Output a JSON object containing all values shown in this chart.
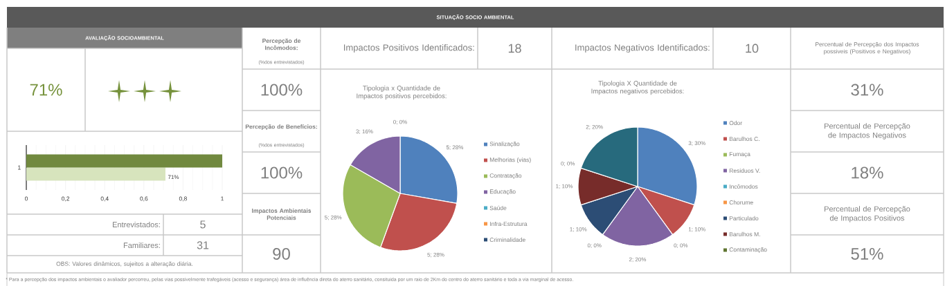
{
  "chart_data": [
    {
      "type": "other",
      "title": "SITUAÇÃO SOCIO AMBIENTAL",
      "annotations": [
        "* Para a percepção dos impactos ambientais o avaliador percorreu, pelas vias possivelmente trafegáveis (acesso e segurança) área de influência direta do aterro sanitário, consituida por um raio de 2Km do centro do aterro sanitário e toda a via marginal de acesso."
      ]
    },
    {
      "type": "other",
      "title": "AVALIAÇÃO SOCIOAMBIENTAL",
      "annotations": [
        "71%",
        "Entrevistados:",
        "5",
        "Familiares:",
        "31",
        "OBS: Valores dinâmicos, sujeitos a alteração diária."
      ]
    },
    {
      "type": "bar",
      "orientation": "horizontal",
      "categories": [
        "1"
      ],
      "series": [
        {
          "color": "#d7e4bd",
          "values": [
            0.71
          ],
          "value_labels": [
            "71%"
          ]
        },
        {
          "color": "#71893f",
          "values": [
            1
          ]
        }
      ],
      "xlim": [
        0,
        1
      ],
      "xticks": [
        0,
        {
          "value": 0.2,
          "label": "0,2"
        },
        {
          "value": 0.4,
          "label": "0,4"
        },
        {
          "value": 0.6,
          "label": "0,6"
        },
        {
          "value": 0.8,
          "label": "0,8"
        },
        1
      ],
      "grid": "x"
    },
    {
      "type": "other",
      "annotations": [
        "Percepção de Incômodos:",
        "(%dos entrevistados)",
        "100%",
        "Percepção de Benefícios:",
        "(%dos entrevistados)",
        "100%",
        "Impactos Ambientais Potenciais",
        "90"
      ]
    },
    {
      "type": "other",
      "annotations": [
        "Impactos Positivos Identificados:",
        "18"
      ]
    },
    {
      "type": "pie",
      "title": "Tipologia x Quantidade de Impactos positivos percebidos:",
      "categories": [
        "Sinalização",
        "Melhorias (vias)",
        "Contratação",
        "Educação",
        "Saúde",
        "Infra-Estrutura",
        "Criminalidade"
      ],
      "values": [
        5,
        5,
        5,
        3,
        0,
        0,
        0
      ],
      "value_labels": [
        "5; 28%",
        "5; 28%",
        "5; 28%",
        "3; 16%",
        "0; 0%",
        null,
        null
      ],
      "colors": [
        "#4f81bd",
        "#c0504d",
        "#9bbb59",
        "#8064a2",
        "#4bacc6",
        "#f79646",
        "#2c4d75"
      ],
      "legend": "right"
    },
    {
      "type": "other",
      "annotations": [
        "Impactos Negativos Identificados:",
        "10"
      ]
    },
    {
      "type": "pie",
      "title": "Tipologia X Quantidade de Impactos negativos percebidos:",
      "categories": [
        "Odor",
        "Barulhos C.",
        "Fumaça",
        "Residuos V.",
        "Incômodos",
        "Chorume",
        "Particulado",
        "Barulhos M.",
        "Contaminação",
        null
      ],
      "values": [
        3,
        1,
        0,
        2,
        0,
        0,
        1,
        1,
        0,
        2
      ],
      "value_labels": [
        "3; 30%",
        "1; 10%",
        "0; 0%",
        "2; 20%",
        "0; 0%",
        null,
        "1; 10%",
        "1; 10%",
        "0; 0%",
        "2; 20%"
      ],
      "colors": [
        "#4f81bd",
        "#c0504d",
        "#9bbb59",
        "#8064a2",
        "#4bacc6",
        "#f79646",
        "#2c4d75",
        "#772c2a",
        "#5f7530",
        "#276a7d"
      ],
      "legend": "right"
    },
    {
      "type": "other",
      "annotations": [
        "Percentual de Percepção dos Impactos possiveis (Positivos e Negativos)",
        "31%",
        "Percentual de Percepção de Impactos Negativos",
        "18%",
        "Percentual de Percepção de Impactos Positivos",
        "51%"
      ]
    }
  ]
}
